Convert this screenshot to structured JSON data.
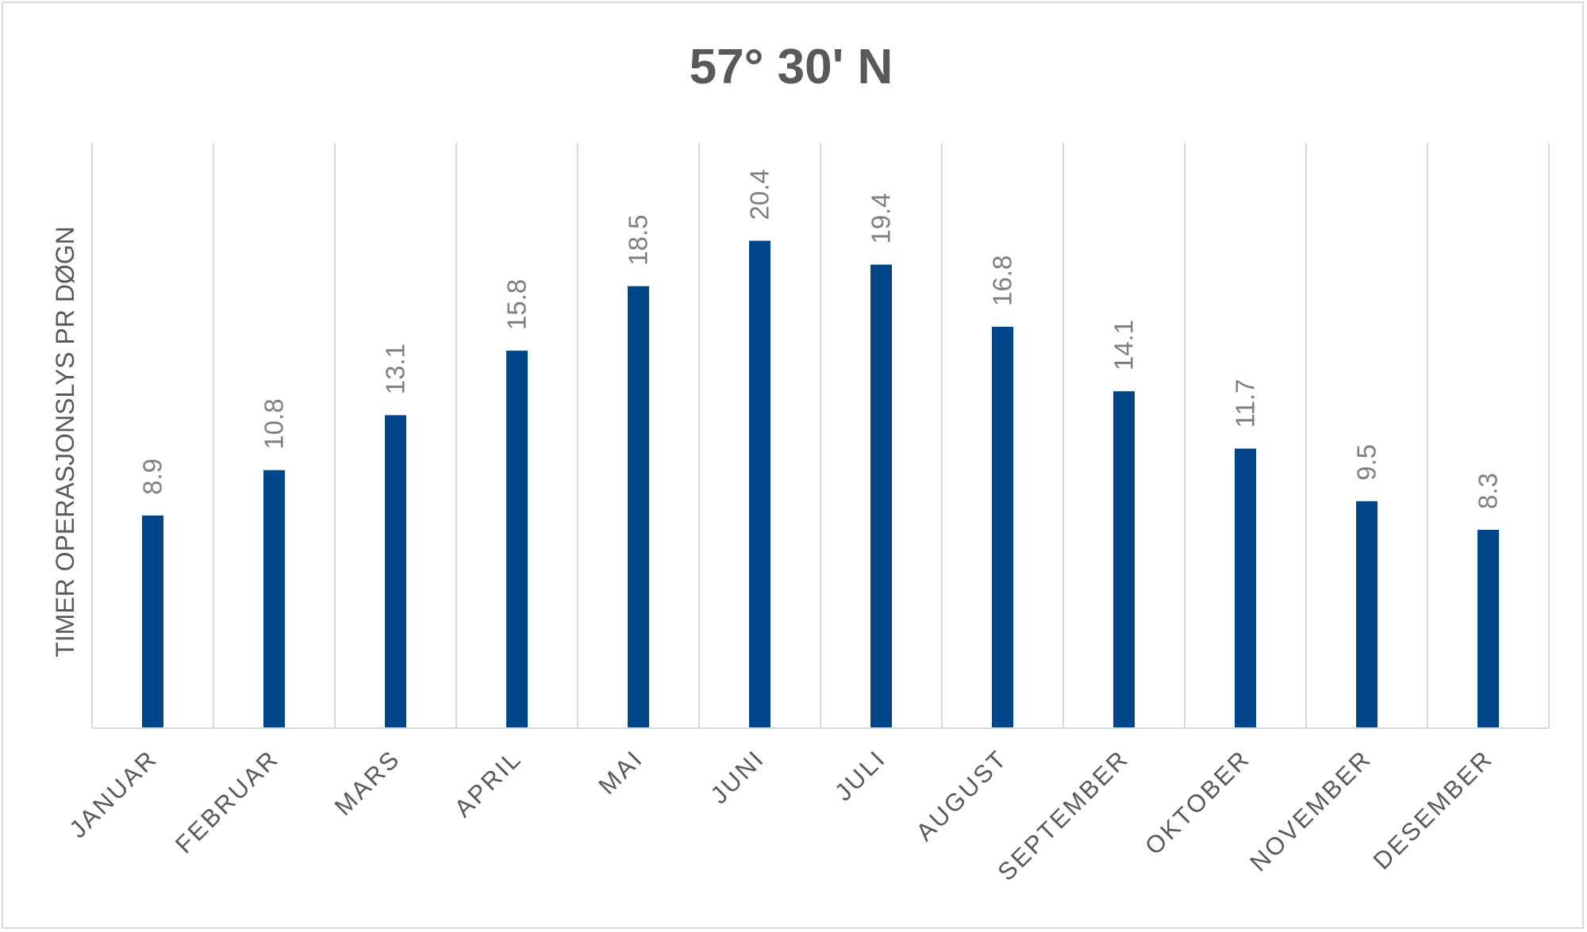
{
  "chart_data": {
    "type": "bar",
    "title": "57° 30' N",
    "ylabel": "TIMER OPERASJONSLYS PR DØGN",
    "xlabel": "",
    "categories": [
      "JANUAR",
      "FEBRUAR",
      "MARS",
      "APRIL",
      "MAI",
      "JUNI",
      "JULI",
      "AUGUST",
      "SEPTEMBER",
      "OKTOBER",
      "NOVEMBER",
      "DESEMBER"
    ],
    "values": [
      8.9,
      10.8,
      13.1,
      15.8,
      18.5,
      20.4,
      19.4,
      16.8,
      14.1,
      11.7,
      9.5,
      8.3
    ],
    "data_labels": [
      "8.9",
      "10.8",
      "13.1",
      "15.8",
      "18.5",
      "20.4",
      "19.4",
      "16.8",
      "14.1",
      "11.7",
      "9.5",
      "8.3"
    ],
    "ylim": [
      0,
      24.5
    ],
    "grid": "vertical",
    "legend": "none",
    "bar_color": "#00468B",
    "grid_color": "#d9d9d9",
    "text_color": "#595959",
    "label_color": "#7f7f7f"
  }
}
